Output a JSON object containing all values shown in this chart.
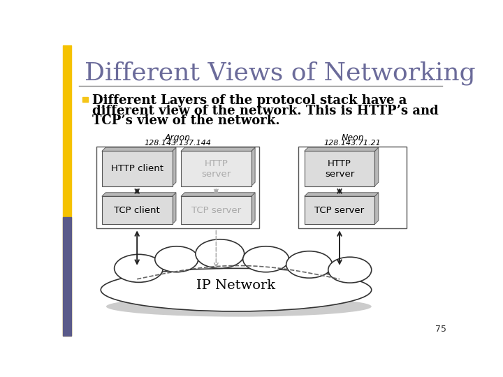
{
  "title": "Different Views of Networking",
  "title_color": "#6b6b9a",
  "bullet_color": "#f5c518",
  "body_line1": "Different Layers of the protocol stack have a",
  "body_line2": "different view of the network. This is HTTP’s and",
  "body_line3": "TCP’s view of the network.",
  "argon_label": "Argon",
  "argon_ip": "128.143.137.144",
  "neon_label": "Neon",
  "neon_ip": "128.143.71.21",
  "ip_network_label": "IP Network",
  "page_number": "75",
  "slide_bg": "#ffffff",
  "bar_orange": "#f5c200",
  "bar_purple": "#5a5a8a",
  "title_underline": "#888888",
  "box_face_dark": "#dcdcdc",
  "box_face_light": "#e8e8e8",
  "box_shadow": "#b8b8b8",
  "box_edge": "#555555",
  "gray_text": "#aaaaaa",
  "black_text": "#000000",
  "arrow_black": "#222222",
  "arrow_gray": "#aaaaaa",
  "cloud_edge": "#333333",
  "cloud_shadow": "#cccccc"
}
